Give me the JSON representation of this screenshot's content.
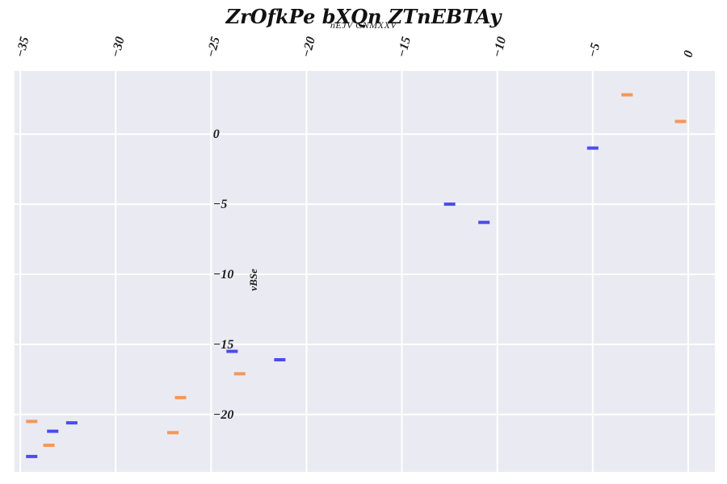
{
  "chart_data": {
    "type": "scatter",
    "title": "ZrOfkPe bXQn ZTnEBTAy",
    "xlabel": "nEJV CNMXXV",
    "ylabel": "vBSe",
    "xlim": [
      -35.3,
      1.4
    ],
    "ylim": [
      -24.1,
      4.5
    ],
    "x_ticks": [
      -35,
      -30,
      -25,
      -20,
      -15,
      -10,
      -5,
      0
    ],
    "y_ticks": [
      0,
      -5,
      -10,
      -15,
      -20
    ],
    "x_axis_position": "top",
    "grid": true,
    "legend": "none",
    "marker": "horizontal-dash",
    "series": [
      {
        "color": "#4b4bef",
        "points": [
          {
            "x": -5.0,
            "y": -1.0
          },
          {
            "x": -12.5,
            "y": -5.0
          },
          {
            "x": -10.7,
            "y": -6.3
          },
          {
            "x": -23.9,
            "y": -15.5
          },
          {
            "x": -21.4,
            "y": -16.1
          },
          {
            "x": -32.3,
            "y": -20.6
          },
          {
            "x": -33.3,
            "y": -21.2
          },
          {
            "x": -34.4,
            "y": -23.0
          }
        ]
      },
      {
        "color": "#f4975a",
        "points": [
          {
            "x": -3.2,
            "y": 2.8
          },
          {
            "x": -0.4,
            "y": 0.9
          },
          {
            "x": -23.5,
            "y": -17.1
          },
          {
            "x": -26.6,
            "y": -18.8
          },
          {
            "x": -27.0,
            "y": -21.3
          },
          {
            "x": -34.4,
            "y": -20.5
          },
          {
            "x": -33.5,
            "y": -22.2
          }
        ]
      }
    ]
  }
}
